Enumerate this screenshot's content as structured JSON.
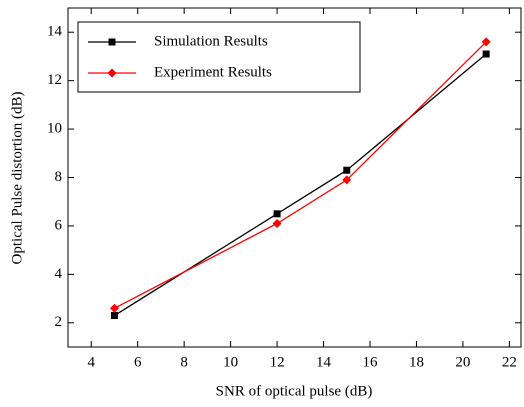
{
  "chart_data": {
    "type": "line",
    "xlabel": "SNR of optical pulse (dB)",
    "ylabel": "Optical Pulse distortion (dB)",
    "x": [
      5,
      12,
      15,
      21
    ],
    "series": [
      {
        "name": "Simulation Results",
        "color": "#000000",
        "marker": "square",
        "values": [
          2.3,
          6.5,
          8.3,
          13.1
        ]
      },
      {
        "name": "Experiment Results",
        "color": "#ff0000",
        "marker": "diamond",
        "values": [
          2.6,
          6.1,
          7.9,
          13.6
        ]
      }
    ],
    "xlim": [
      3,
      22.5
    ],
    "xticks": [
      4,
      6,
      8,
      10,
      12,
      14,
      16,
      18,
      20,
      22
    ],
    "ylim": [
      1,
      15
    ],
    "yticks": [
      2,
      4,
      6,
      8,
      10,
      12,
      14
    ],
    "legend": "upper-left",
    "grid": false
  }
}
